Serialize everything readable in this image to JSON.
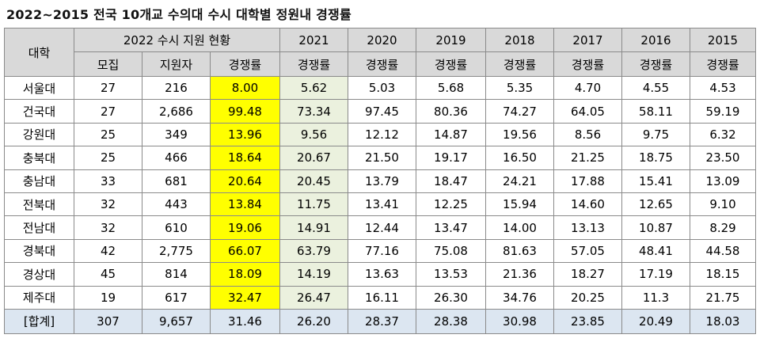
{
  "title": "2022~2015 전국 10개교 수의대 수시 대학별 정원내 경쟁률",
  "headers": {
    "university": "대학",
    "group2022": "2022 수시 지원 현황",
    "sub2022": [
      "모집",
      "지원자",
      "경쟁률"
    ],
    "years": [
      "2021",
      "2020",
      "2019",
      "2018",
      "2017",
      "2016",
      "2015"
    ],
    "rate_label": "경쟁률"
  },
  "rows": [
    {
      "name": "서울대",
      "quota": "27",
      "applicants": "216",
      "rate2022": "8.00",
      "r2021": "5.62",
      "r2020": "5.03",
      "r2019": "5.68",
      "r2018": "5.35",
      "r2017": "4.70",
      "r2016": "4.55",
      "r2015": "4.53"
    },
    {
      "name": "건국대",
      "quota": "27",
      "applicants": "2,686",
      "rate2022": "99.48",
      "r2021": "73.34",
      "r2020": "97.45",
      "r2019": "80.36",
      "r2018": "74.27",
      "r2017": "64.05",
      "r2016": "58.11",
      "r2015": "59.19"
    },
    {
      "name": "강원대",
      "quota": "25",
      "applicants": "349",
      "rate2022": "13.96",
      "r2021": "9.56",
      "r2020": "12.12",
      "r2019": "14.87",
      "r2018": "19.56",
      "r2017": "8.56",
      "r2016": "9.75",
      "r2015": "6.32"
    },
    {
      "name": "충북대",
      "quota": "25",
      "applicants": "466",
      "rate2022": "18.64",
      "r2021": "20.67",
      "r2020": "21.50",
      "r2019": "19.17",
      "r2018": "16.50",
      "r2017": "21.25",
      "r2016": "18.75",
      "r2015": "23.50"
    },
    {
      "name": "충남대",
      "quota": "33",
      "applicants": "681",
      "rate2022": "20.64",
      "r2021": "20.45",
      "r2020": "13.79",
      "r2019": "18.47",
      "r2018": "24.21",
      "r2017": "17.88",
      "r2016": "15.41",
      "r2015": "13.09"
    },
    {
      "name": "전북대",
      "quota": "32",
      "applicants": "443",
      "rate2022": "13.84",
      "r2021": "11.75",
      "r2020": "13.41",
      "r2019": "12.25",
      "r2018": "15.94",
      "r2017": "14.60",
      "r2016": "12.65",
      "r2015": "9.10"
    },
    {
      "name": "전남대",
      "quota": "32",
      "applicants": "610",
      "rate2022": "19.06",
      "r2021": "14.91",
      "r2020": "12.44",
      "r2019": "13.47",
      "r2018": "14.00",
      "r2017": "13.13",
      "r2016": "10.87",
      "r2015": "8.29"
    },
    {
      "name": "경북대",
      "quota": "42",
      "applicants": "2,775",
      "rate2022": "66.07",
      "r2021": "63.79",
      "r2020": "77.16",
      "r2019": "75.08",
      "r2018": "81.63",
      "r2017": "57.05",
      "r2016": "48.41",
      "r2015": "44.58"
    },
    {
      "name": "경상대",
      "quota": "45",
      "applicants": "814",
      "rate2022": "18.09",
      "r2021": "14.19",
      "r2020": "13.63",
      "r2019": "13.53",
      "r2018": "21.36",
      "r2017": "18.27",
      "r2016": "17.19",
      "r2015": "18.15"
    },
    {
      "name": "제주대",
      "quota": "19",
      "applicants": "617",
      "rate2022": "32.47",
      "r2021": "26.47",
      "r2020": "16.11",
      "r2019": "26.30",
      "r2018": "34.76",
      "r2017": "20.25",
      "r2016": "11.3",
      "r2015": "21.75"
    }
  ],
  "total": {
    "name": "[합계]",
    "quota": "307",
    "applicants": "9,657",
    "rate2022": "31.46",
    "r2021": "26.20",
    "r2020": "28.37",
    "r2019": "28.38",
    "r2018": "30.98",
    "r2017": "23.85",
    "r2016": "20.49",
    "r2015": "18.03"
  },
  "colors": {
    "header_bg": "#d9d9d9",
    "highlight_2022": "#ffff00",
    "col_2021": "#ebf1de",
    "total_row": "#dce6f1"
  }
}
